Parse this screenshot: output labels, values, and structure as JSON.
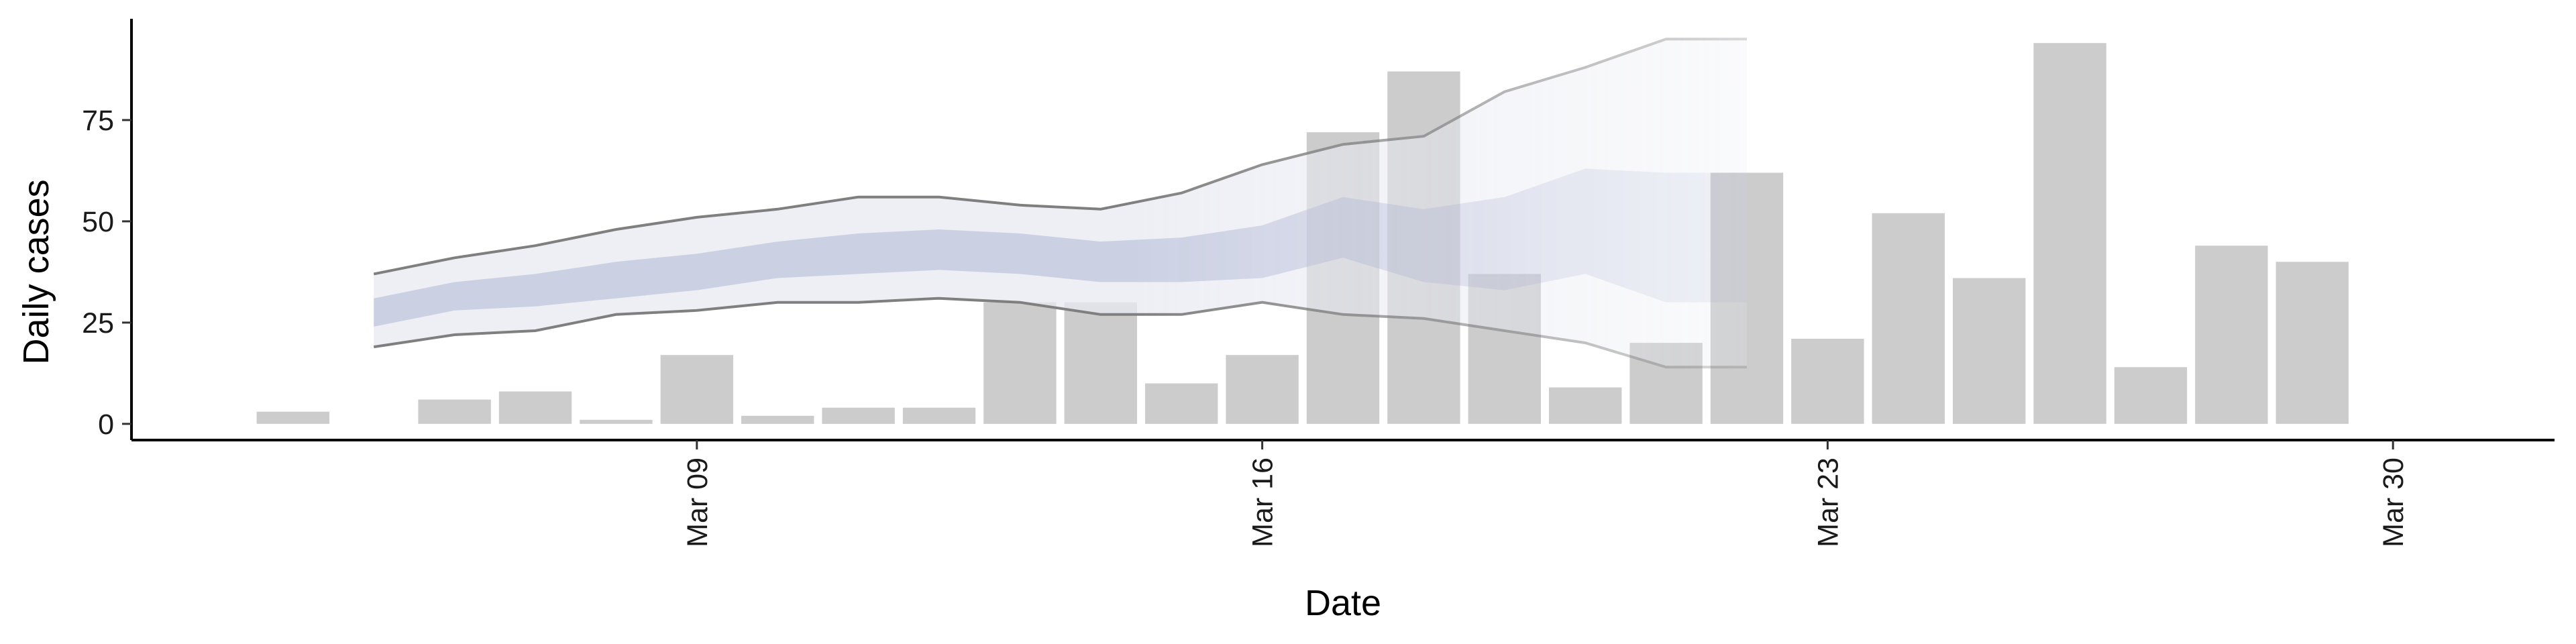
{
  "chart_data": {
    "type": "bar",
    "title": "",
    "xlabel": "Date",
    "ylabel": "Daily cases",
    "x_range": [
      "2020-03-02",
      "2020-04-01"
    ],
    "ylim": [
      -4,
      100
    ],
    "y_ticks": [
      0,
      25,
      50,
      75
    ],
    "x_ticks": [
      {
        "date": "2020-03-09",
        "label": "Mar 09"
      },
      {
        "date": "2020-03-16",
        "label": "Mar 16"
      },
      {
        "date": "2020-03-23",
        "label": "Mar 23"
      },
      {
        "date": "2020-03-30",
        "label": "Mar 30"
      }
    ],
    "grid": false,
    "legend": "none",
    "bars": {
      "color": "#cccccc",
      "dates": [
        "2020-03-04",
        "2020-03-05",
        "2020-03-06",
        "2020-03-07",
        "2020-03-08",
        "2020-03-09",
        "2020-03-10",
        "2020-03-11",
        "2020-03-12",
        "2020-03-13",
        "2020-03-14",
        "2020-03-15",
        "2020-03-16",
        "2020-03-17",
        "2020-03-18",
        "2020-03-19",
        "2020-03-20",
        "2020-03-21",
        "2020-03-22",
        "2020-03-23",
        "2020-03-24",
        "2020-03-25",
        "2020-03-26",
        "2020-03-27",
        "2020-03-28",
        "2020-03-29",
        "2020-03-30",
        "2020-03-31"
      ],
      "values": [
        3,
        0,
        6,
        8,
        1,
        17,
        2,
        4,
        4,
        30,
        30,
        10,
        17,
        72,
        87,
        37,
        9,
        20,
        62,
        21,
        52,
        36,
        94,
        14,
        44,
        40,
        0,
        0
      ]
    },
    "estimate": {
      "dates": [
        "2020-03-05",
        "2020-03-06",
        "2020-03-07",
        "2020-03-08",
        "2020-03-09",
        "2020-03-10",
        "2020-03-11",
        "2020-03-12",
        "2020-03-13",
        "2020-03-14",
        "2020-03-15",
        "2020-03-16",
        "2020-03-17",
        "2020-03-18",
        "2020-03-19",
        "2020-03-20",
        "2020-03-21",
        "2020-03-22"
      ],
      "upper_90": [
        37,
        41,
        44,
        48,
        51,
        53,
        56,
        56,
        54,
        53,
        57,
        64,
        69,
        71,
        82,
        88,
        95,
        95
      ],
      "upper_50": [
        31,
        35,
        37,
        40,
        42,
        45,
        47,
        48,
        47,
        45,
        46,
        49,
        56,
        53,
        56,
        63,
        62,
        62
      ],
      "lower_50": [
        24,
        28,
        29,
        31,
        33,
        36,
        37,
        38,
        37,
        35,
        35,
        36,
        41,
        35,
        33,
        37,
        30,
        30
      ],
      "lower_90": [
        19,
        22,
        23,
        27,
        28,
        30,
        30,
        31,
        30,
        27,
        27,
        30,
        27,
        26,
        23,
        20,
        14,
        14
      ],
      "outer_band_color": "#e8e9f2",
      "inner_band_color": "#c5cbe0",
      "line_color": "#7f7f7f"
    }
  }
}
